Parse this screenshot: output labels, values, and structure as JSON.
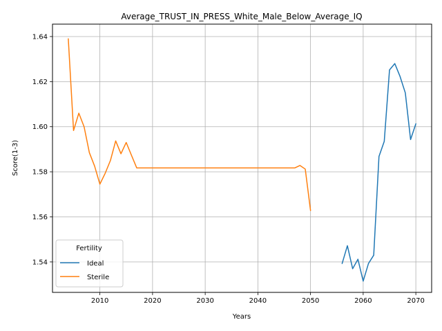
{
  "chart_data": {
    "type": "line",
    "title": "Average_TRUST_IN_PRESS_White_Male_Below_Average_IQ",
    "xlabel": "Years",
    "ylabel": "Score(1-3)",
    "xlim": [
      2001,
      2073
    ],
    "ylim": [
      1.5265,
      1.6455
    ],
    "xticks": [
      2010,
      2020,
      2030,
      2040,
      2050,
      2060,
      2070
    ],
    "yticks": [
      1.54,
      1.56,
      1.58,
      1.6,
      1.62,
      1.64
    ],
    "grid": true,
    "legend": {
      "title": "Fertility",
      "position": "lower-left"
    },
    "series": [
      {
        "name": "Ideal",
        "color": "#1f77b4",
        "x": [
          2056,
          2057,
          2058,
          2059,
          2060,
          2061,
          2062,
          2063,
          2064,
          2065,
          2066,
          2067,
          2068,
          2069,
          2070
        ],
        "y": [
          1.5393,
          1.5472,
          1.537,
          1.5412,
          1.5315,
          1.5393,
          1.543,
          1.5868,
          1.5935,
          1.6252,
          1.628,
          1.6223,
          1.615,
          1.5943,
          1.6013
        ]
      },
      {
        "name": "Sterile",
        "color": "#ff7f0e",
        "x": [
          2004,
          2005,
          2006,
          2007,
          2008,
          2009,
          2010,
          2011,
          2012,
          2013,
          2014,
          2015,
          2016,
          2017,
          2018,
          2020,
          2025,
          2030,
          2035,
          2040,
          2045,
          2047,
          2048,
          2049,
          2050
        ],
        "y": [
          1.639,
          1.5983,
          1.606,
          1.6,
          1.5885,
          1.5825,
          1.5745,
          1.5793,
          1.585,
          1.5937,
          1.588,
          1.593,
          1.5873,
          1.5817,
          1.5817,
          1.5817,
          1.5817,
          1.5817,
          1.5817,
          1.5817,
          1.5817,
          1.5817,
          1.5828,
          1.5812,
          1.5628
        ]
      }
    ]
  }
}
